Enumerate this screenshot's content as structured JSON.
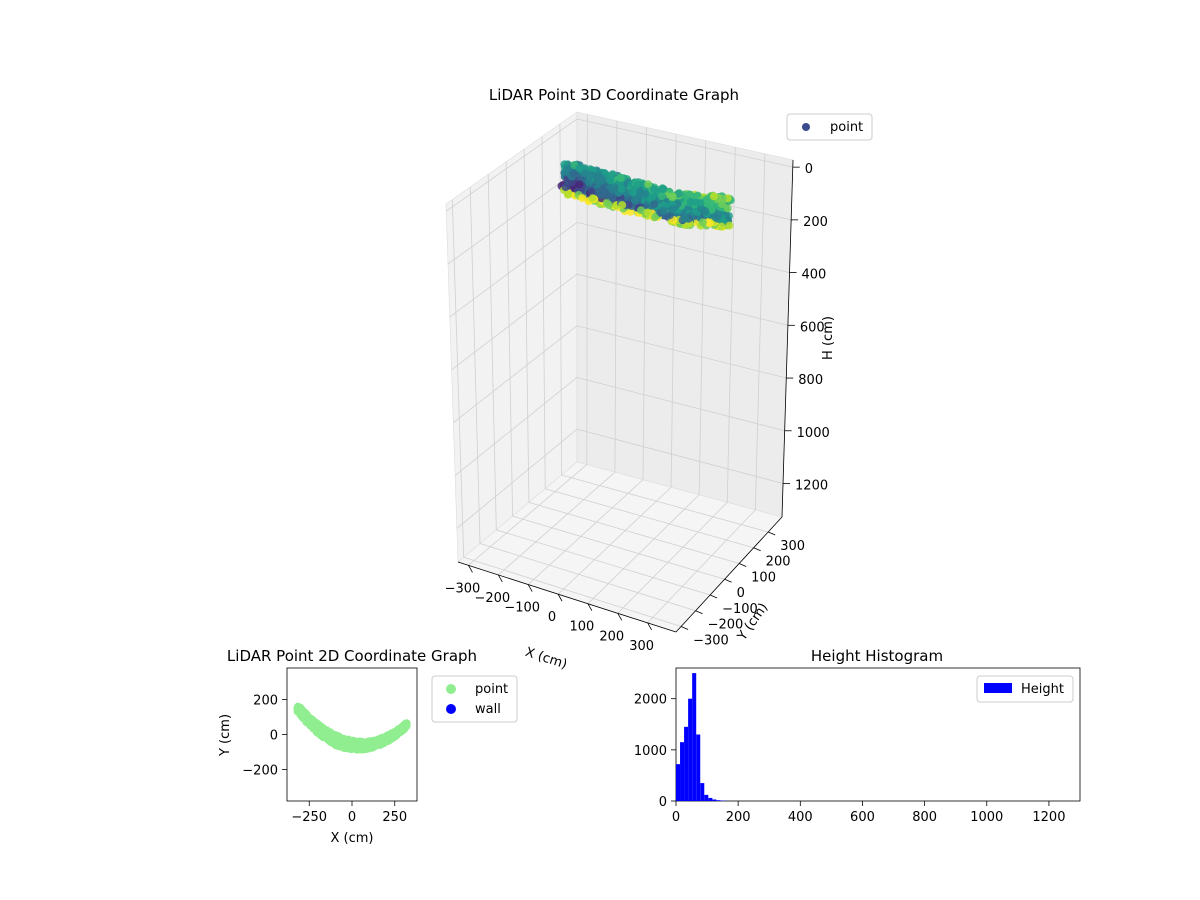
{
  "chart_data": [
    {
      "type": "scatter",
      "title": "LiDAR Point 3D Coordinate Graph",
      "xlabel": "X (cm)",
      "ylabel": "Y (cm)",
      "zlabel": "H (cm)",
      "xticks": [
        "−300",
        "−200",
        "−100",
        "0",
        "100",
        "200",
        "300"
      ],
      "yticks": [
        "−300",
        "−200",
        "−100",
        "0",
        "100",
        "200",
        "300"
      ],
      "zticks": [
        "0",
        "200",
        "400",
        "600",
        "800",
        "1000",
        "1200"
      ],
      "zlim": [
        0,
        1300
      ],
      "z_inverted": true,
      "grid": true,
      "colormap": "viridis",
      "legend": {
        "placement": "top-right",
        "entries": [
          {
            "name": "point",
            "color": "#3b4a8c"
          }
        ]
      }
    },
    {
      "type": "scatter",
      "title": "LiDAR Point 2D Coordinate Graph",
      "xlabel": "X (cm)",
      "ylabel": "Y (cm)",
      "xticks": [
        "−250",
        "0",
        "250"
      ],
      "yticks": [
        "200",
        "0",
        "−200"
      ],
      "xlim": [
        -380,
        380
      ],
      "ylim": [
        -380,
        380
      ],
      "series": [
        {
          "name": "point",
          "color": "#90ee90"
        },
        {
          "name": "wall",
          "color": "#0000ff"
        }
      ],
      "legend": {
        "placement": "outside-right"
      }
    },
    {
      "type": "bar",
      "title": "Height Histogram",
      "xticks": [
        "0",
        "200",
        "400",
        "600",
        "800",
        "1000",
        "1200"
      ],
      "yticks": [
        "0",
        "1000",
        "2000"
      ],
      "xlim": [
        0,
        1300
      ],
      "ylim": [
        0,
        2600
      ],
      "bin_width": 13,
      "bins_x": [
        0,
        13,
        26,
        39,
        52,
        65,
        78,
        91,
        104,
        117,
        130,
        143,
        156
      ],
      "values": [
        720,
        1150,
        1450,
        2000,
        2500,
        1300,
        350,
        120,
        60,
        30,
        15,
        8,
        4
      ],
      "color": "#0000ff",
      "series": [
        {
          "name": "Height",
          "color": "#0000ff"
        }
      ],
      "legend": {
        "placement": "top-right"
      }
    }
  ]
}
